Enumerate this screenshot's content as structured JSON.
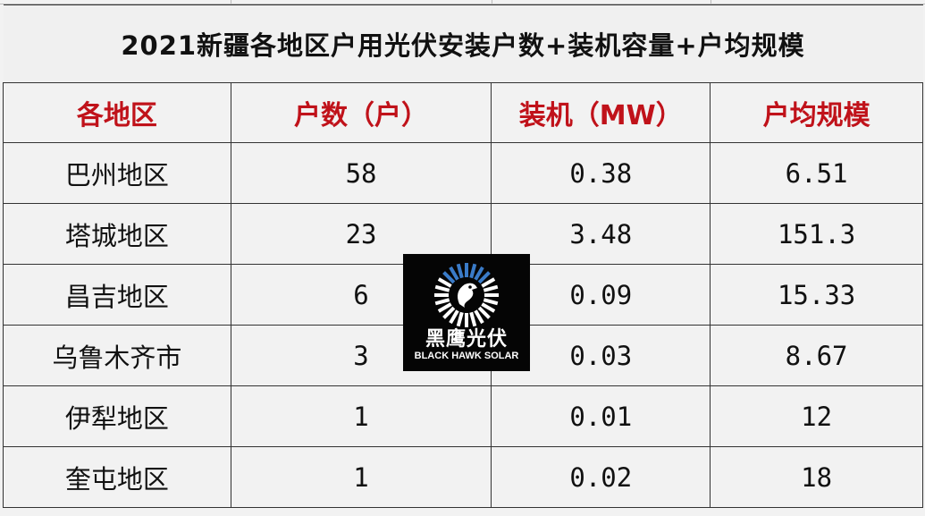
{
  "title": "2021新疆各地区户用光伏安装户数+装机容量+户均规模",
  "headers": [
    "各地区",
    "户数（户）",
    "装机（MW）",
    "户均规模"
  ],
  "rows": [
    [
      "巴州地区",
      "58",
      "0.38",
      "6.51"
    ],
    [
      "塔城地区",
      "23",
      "3.48",
      "151.3"
    ],
    [
      "昌吉地区",
      "6",
      "0.09",
      "15.33"
    ],
    [
      "乌鲁木齐市",
      "3",
      "0.03",
      "8.67"
    ],
    [
      "伊犁地区",
      "1",
      "0.01",
      "12"
    ],
    [
      "奎屯地区",
      "1",
      "0.02",
      "18"
    ]
  ],
  "watermark": {
    "cn": "黑鹰光伏",
    "en": "BLACK HAWK SOLAR",
    "icon": "hawk-logo-icon"
  },
  "colors": {
    "header_text": "#c0121a",
    "background": "#f2f2f2"
  }
}
